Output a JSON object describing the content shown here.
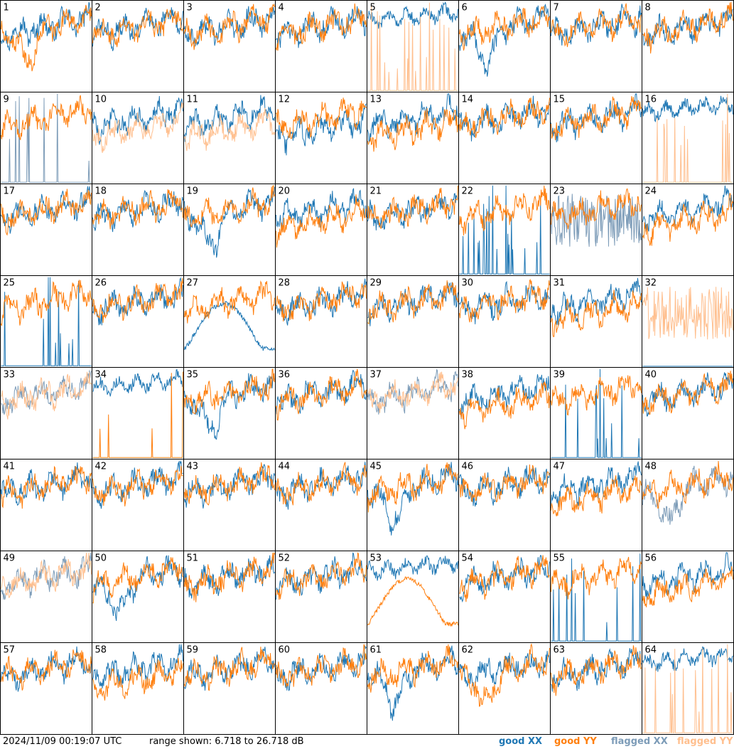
{
  "footer": {
    "timestamp": "2024/11/09 00:19:07 UTC",
    "range": "range shown: 6.718 to 26.718 dB"
  },
  "legend": {
    "good_xx": "good XX",
    "good_yy": "good YY",
    "flagged_xx": "flagged XX",
    "flagged_yy": "flagged YY"
  },
  "colors": {
    "good_xx": "#1f77b4",
    "good_yy": "#ff7f0e",
    "flagged_xx": "#7d9cb8",
    "flagged_yy": "#ffbf8e"
  },
  "chart_data": {
    "type": "line",
    "grid_rows": 8,
    "grid_cols": 8,
    "ylim": [
      6.718,
      26.718
    ],
    "yunit": "dB",
    "panels": [
      {
        "id": "1",
        "xx": "good",
        "yy": "good",
        "xx_shape": "normal",
        "yy_shape": "dip"
      },
      {
        "id": "2",
        "xx": "good",
        "yy": "good",
        "xx_shape": "normal",
        "yy_shape": "normal"
      },
      {
        "id": "3",
        "xx": "good",
        "yy": "good",
        "xx_shape": "normal",
        "yy_shape": "normal"
      },
      {
        "id": "4",
        "xx": "good",
        "yy": "good",
        "xx_shape": "normal",
        "yy_shape": "normal"
      },
      {
        "id": "5",
        "xx": "good",
        "yy": "flagged",
        "xx_shape": "high",
        "yy_shape": "spikes"
      },
      {
        "id": "6",
        "xx": "good",
        "yy": "good",
        "xx_shape": "dip",
        "yy_shape": "normal"
      },
      {
        "id": "7",
        "xx": "good",
        "yy": "good",
        "xx_shape": "normal",
        "yy_shape": "normal"
      },
      {
        "id": "8",
        "xx": "good",
        "yy": "good",
        "xx_shape": "normal",
        "yy_shape": "normal"
      },
      {
        "id": "9",
        "xx": "flagged",
        "yy": "good",
        "xx_shape": "spikes",
        "yy_shape": "normal"
      },
      {
        "id": "10",
        "xx": "good",
        "yy": "flagged",
        "xx_shape": "normal",
        "yy_shape": "lowish"
      },
      {
        "id": "11",
        "xx": "good",
        "yy": "flagged",
        "xx_shape": "normal",
        "yy_shape": "lowish"
      },
      {
        "id": "12",
        "xx": "good",
        "yy": "good",
        "xx_shape": "lowish",
        "yy_shape": "normal"
      },
      {
        "id": "13",
        "xx": "good",
        "yy": "good",
        "xx_shape": "normal",
        "yy_shape": "lowish"
      },
      {
        "id": "14",
        "xx": "good",
        "yy": "good",
        "xx_shape": "normal",
        "yy_shape": "normal"
      },
      {
        "id": "15",
        "xx": "good",
        "yy": "good",
        "xx_shape": "normal",
        "yy_shape": "normal"
      },
      {
        "id": "16",
        "xx": "good",
        "yy": "flagged",
        "xx_shape": "high",
        "yy_shape": "spikes"
      },
      {
        "id": "17",
        "xx": "good",
        "yy": "good",
        "xx_shape": "normal",
        "yy_shape": "normal"
      },
      {
        "id": "18",
        "xx": "good",
        "yy": "good",
        "xx_shape": "normal",
        "yy_shape": "normal"
      },
      {
        "id": "19",
        "xx": "good",
        "yy": "good",
        "xx_shape": "dip",
        "yy_shape": "normal"
      },
      {
        "id": "20",
        "xx": "good",
        "yy": "good",
        "xx_shape": "normal",
        "yy_shape": "lowish"
      },
      {
        "id": "21",
        "xx": "good",
        "yy": "good",
        "xx_shape": "normal",
        "yy_shape": "normal"
      },
      {
        "id": "22",
        "xx": "good",
        "yy": "good",
        "xx_shape": "spikes",
        "yy_shape": "normal"
      },
      {
        "id": "23",
        "xx": "flagged",
        "yy": "good",
        "xx_shape": "noisy",
        "yy_shape": "normal"
      },
      {
        "id": "24",
        "xx": "good",
        "yy": "good",
        "xx_shape": "normal",
        "yy_shape": "lowish"
      },
      {
        "id": "25",
        "xx": "good",
        "yy": "good",
        "xx_shape": "spikes",
        "yy_shape": "normal"
      },
      {
        "id": "26",
        "xx": "good",
        "yy": "good",
        "xx_shape": "normal",
        "yy_shape": "normal"
      },
      {
        "id": "27",
        "xx": "good",
        "yy": "good",
        "xx_shape": "bowl",
        "yy_shape": "normal"
      },
      {
        "id": "28",
        "xx": "good",
        "yy": "good",
        "xx_shape": "normal",
        "yy_shape": "normal"
      },
      {
        "id": "29",
        "xx": "good",
        "yy": "good",
        "xx_shape": "normal",
        "yy_shape": "normal"
      },
      {
        "id": "30",
        "xx": "good",
        "yy": "good",
        "xx_shape": "normal",
        "yy_shape": "normal"
      },
      {
        "id": "31",
        "xx": "good",
        "yy": "good",
        "xx_shape": "normal",
        "yy_shape": "lowish"
      },
      {
        "id": "32",
        "xx": "good",
        "yy": "flagged",
        "xx_shape": "flat0",
        "yy_shape": "noisy"
      },
      {
        "id": "33",
        "xx": "flagged",
        "yy": "flagged",
        "xx_shape": "normal",
        "yy_shape": "normal"
      },
      {
        "id": "34",
        "xx": "good",
        "yy": "good",
        "xx_shape": "high",
        "yy_shape": "spikes"
      },
      {
        "id": "35",
        "xx": "good",
        "yy": "good",
        "xx_shape": "dip",
        "yy_shape": "normal"
      },
      {
        "id": "36",
        "xx": "good",
        "yy": "good",
        "xx_shape": "normal",
        "yy_shape": "normal"
      },
      {
        "id": "37",
        "xx": "flagged",
        "yy": "flagged",
        "xx_shape": "normal",
        "yy_shape": "normal"
      },
      {
        "id": "38",
        "xx": "good",
        "yy": "good",
        "xx_shape": "normal",
        "yy_shape": "lowish"
      },
      {
        "id": "39",
        "xx": "good",
        "yy": "good",
        "xx_shape": "spikes",
        "yy_shape": "normal"
      },
      {
        "id": "40",
        "xx": "good",
        "yy": "good",
        "xx_shape": "normal",
        "yy_shape": "normal"
      },
      {
        "id": "41",
        "xx": "good",
        "yy": "good",
        "xx_shape": "normal",
        "yy_shape": "normal"
      },
      {
        "id": "42",
        "xx": "good",
        "yy": "good",
        "xx_shape": "normal",
        "yy_shape": "normal"
      },
      {
        "id": "43",
        "xx": "good",
        "yy": "good",
        "xx_shape": "normal",
        "yy_shape": "normal"
      },
      {
        "id": "44",
        "xx": "good",
        "yy": "good",
        "xx_shape": "normal",
        "yy_shape": "normal"
      },
      {
        "id": "45",
        "xx": "good",
        "yy": "good",
        "xx_shape": "dip",
        "yy_shape": "normal"
      },
      {
        "id": "46",
        "xx": "good",
        "yy": "good",
        "xx_shape": "normal",
        "yy_shape": "normal"
      },
      {
        "id": "47",
        "xx": "good",
        "yy": "good",
        "xx_shape": "normal",
        "yy_shape": "lowish"
      },
      {
        "id": "48",
        "xx": "flagged",
        "yy": "good",
        "xx_shape": "dip",
        "yy_shape": "normal"
      },
      {
        "id": "49",
        "xx": "flagged",
        "yy": "flagged",
        "xx_shape": "normal",
        "yy_shape": "normal"
      },
      {
        "id": "50",
        "xx": "good",
        "yy": "good",
        "xx_shape": "dip",
        "yy_shape": "normal"
      },
      {
        "id": "51",
        "xx": "good",
        "yy": "good",
        "xx_shape": "normal",
        "yy_shape": "normal"
      },
      {
        "id": "52",
        "xx": "good",
        "yy": "good",
        "xx_shape": "normal",
        "yy_shape": "normal"
      },
      {
        "id": "53",
        "xx": "good",
        "yy": "good",
        "xx_shape": "high",
        "yy_shape": "bowl"
      },
      {
        "id": "54",
        "xx": "good",
        "yy": "good",
        "xx_shape": "normal",
        "yy_shape": "normal"
      },
      {
        "id": "55",
        "xx": "good",
        "yy": "good",
        "xx_shape": "spikes",
        "yy_shape": "normal"
      },
      {
        "id": "56",
        "xx": "good",
        "yy": "good",
        "xx_shape": "normal",
        "yy_shape": "lowish"
      },
      {
        "id": "57",
        "xx": "good",
        "yy": "good",
        "xx_shape": "normal",
        "yy_shape": "normal"
      },
      {
        "id": "58",
        "xx": "good",
        "yy": "good",
        "xx_shape": "normal",
        "yy_shape": "lowish"
      },
      {
        "id": "59",
        "xx": "good",
        "yy": "good",
        "xx_shape": "normal",
        "yy_shape": "normal"
      },
      {
        "id": "60",
        "xx": "good",
        "yy": "good",
        "xx_shape": "normal",
        "yy_shape": "normal"
      },
      {
        "id": "61",
        "xx": "good",
        "yy": "good",
        "xx_shape": "dip",
        "yy_shape": "normal"
      },
      {
        "id": "62",
        "xx": "good",
        "yy": "good",
        "xx_shape": "normal",
        "yy_shape": "dip"
      },
      {
        "id": "63",
        "xx": "good",
        "yy": "good",
        "xx_shape": "normal",
        "yy_shape": "normal"
      },
      {
        "id": "64",
        "xx": "good",
        "yy": "flagged",
        "xx_shape": "high",
        "yy_shape": "spikes"
      }
    ]
  }
}
